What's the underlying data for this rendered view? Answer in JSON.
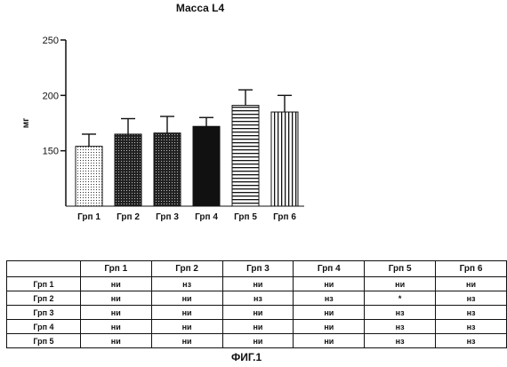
{
  "chart_data": {
    "type": "bar",
    "title": "Масса L4",
    "ylabel": "мг",
    "ylim": [
      100,
      250
    ],
    "yticks": [
      150,
      200,
      250
    ],
    "categories": [
      "Грп 1",
      "Грп 2",
      "Грп 3",
      "Грп 4",
      "Грп 5",
      "Грп 6"
    ],
    "values": [
      154,
      165,
      166,
      172,
      191,
      185
    ],
    "errors": [
      11,
      14,
      15,
      8,
      14,
      15
    ],
    "patterns": [
      "light-dots",
      "dark-dots",
      "dark-dots",
      "solid-black",
      "horizontal-lines",
      "vertical-lines"
    ]
  },
  "table": {
    "headers": [
      "",
      "Грп 1",
      "Грп 2",
      "Грп 3",
      "Грп 4",
      "Грп 5",
      "Грп 6"
    ],
    "rows": [
      [
        "Грп 1",
        "ни",
        "нз",
        "ни",
        "ни",
        "ни",
        "ни"
      ],
      [
        "Грп 2",
        "ни",
        "ни",
        "нз",
        "нз",
        "*",
        "нз"
      ],
      [
        "Грп 3",
        "ни",
        "ни",
        "ни",
        "ни",
        "нз",
        "нз"
      ],
      [
        "Грп 4",
        "ни",
        "ни",
        "ни",
        "ни",
        "нз",
        "нз"
      ],
      [
        "Грп 5",
        "ни",
        "ни",
        "ни",
        "ни",
        "нз",
        "нз"
      ]
    ]
  },
  "caption": "ФИГ.1"
}
